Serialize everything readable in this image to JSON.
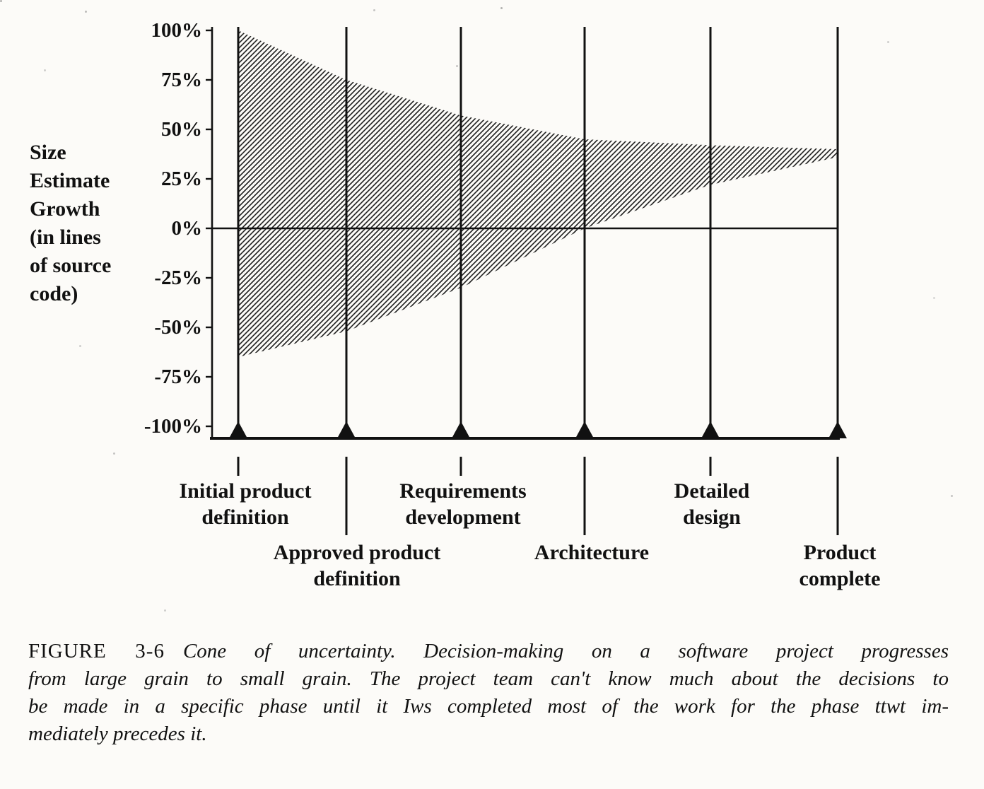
{
  "figure": {
    "caption": {
      "label": "FIGURE 3-6",
      "lines": [
        "Cone of uncertainty. Decision-making on a software project progresses",
        "from large grain to small grain. The project team can't know much about the decisions to",
        "be made in a specific phase until it Iws completed most of the work for the phase ttwt im-",
        "mediately precedes it."
      ]
    }
  },
  "chart_data": {
    "type": "area",
    "title": "",
    "ylabel": "Size Estimate Growth (in lines of source code)",
    "ylabel_lines": [
      "Size",
      "Estimate",
      "Growth",
      "(in lines",
      "of source",
      "code)"
    ],
    "ylim": [
      -100,
      100
    ],
    "y_ticks": [
      100,
      75,
      50,
      25,
      0,
      -25,
      -50,
      -75,
      -100
    ],
    "y_tick_labels": [
      "100%",
      "75%",
      "50%",
      "25%",
      "0%",
      "-25%",
      "-50%",
      "-75%",
      "-100%"
    ],
    "zero_line": true,
    "grid": false,
    "legend": "none",
    "band_style": "diagonal-hatch",
    "milestones": [
      "Initial product definition",
      "Approved product definition",
      "Requirements development",
      "Architecture",
      "Detailed design",
      "Product complete"
    ],
    "milestone_label_lines": [
      [
        "Initial product",
        "definition"
      ],
      [
        "Approved product",
        "definition"
      ],
      [
        "Requirements",
        "development"
      ],
      [
        "Architecture"
      ],
      [
        "Detailed",
        "design"
      ],
      [
        "Product",
        "complete"
      ]
    ],
    "series": [
      {
        "name": "upper estimate bound (%)",
        "values": [
          100,
          75,
          57,
          45,
          42,
          40
        ]
      },
      {
        "name": "lower estimate bound (%)",
        "values": [
          -65,
          -52,
          -30,
          0,
          22,
          36
        ]
      }
    ]
  }
}
